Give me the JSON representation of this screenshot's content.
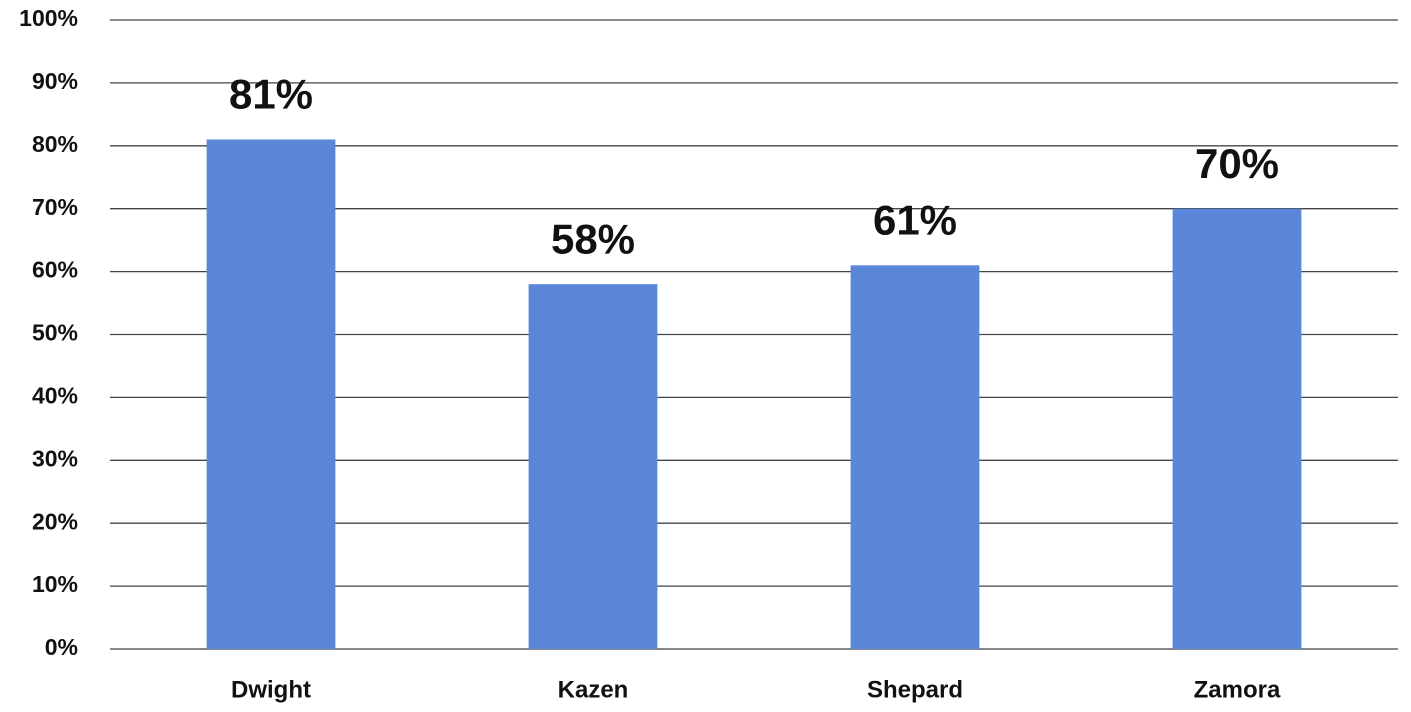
{
  "chart_data": {
    "type": "bar",
    "categories": [
      "Dwight",
      "Kazen",
      "Shepard",
      "Zamora"
    ],
    "values": [
      81,
      58,
      61,
      70
    ],
    "value_labels": [
      "81%",
      "58%",
      "61%",
      "70%"
    ],
    "color": "#5b87d9",
    "ylim": [
      0,
      100
    ],
    "yticks": [
      {
        "value": 0,
        "label": "0%"
      },
      {
        "value": 10,
        "label": "10%"
      },
      {
        "value": 20,
        "label": "20%"
      },
      {
        "value": 30,
        "label": "30%"
      },
      {
        "value": 40,
        "label": "40%"
      },
      {
        "value": 50,
        "label": "50%"
      },
      {
        "value": 60,
        "label": "60%"
      },
      {
        "value": 70,
        "label": "70%"
      },
      {
        "value": 80,
        "label": "80%"
      },
      {
        "value": 90,
        "label": "90%"
      },
      {
        "value": 100,
        "label": "100%"
      }
    ],
    "grid": true
  }
}
